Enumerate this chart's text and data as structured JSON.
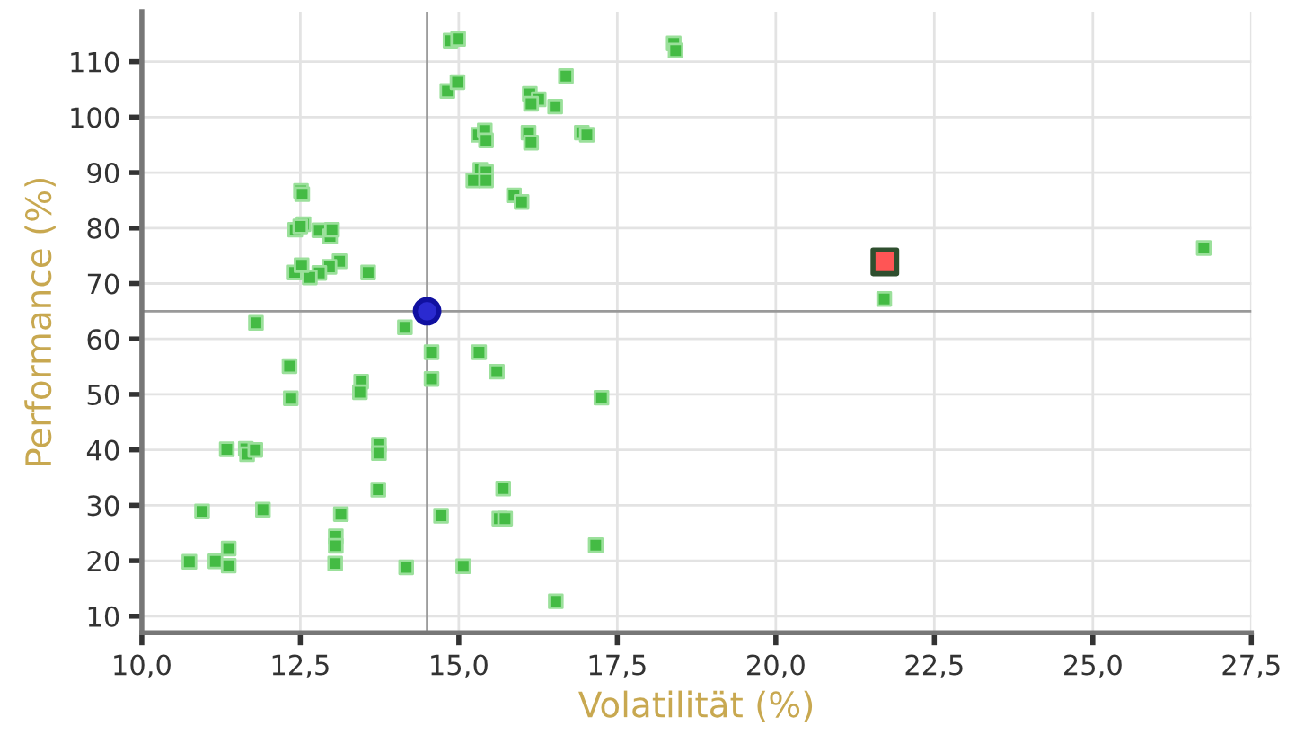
{
  "chart_data": {
    "type": "scatter",
    "xlabel": "Volatilität (%)",
    "ylabel": "Performance (%)",
    "xlim": [
      10,
      27.5
    ],
    "ylim": [
      7,
      119
    ],
    "xticks": [
      {
        "value": 10,
        "label": "10,0"
      },
      {
        "value": 12.5,
        "label": "12,5"
      },
      {
        "value": 15,
        "label": "15,0"
      },
      {
        "value": 17.5,
        "label": "17,5"
      },
      {
        "value": 20,
        "label": "20,0"
      },
      {
        "value": 22.5,
        "label": "22,5"
      },
      {
        "value": 25,
        "label": "25,0"
      },
      {
        "value": 27.5,
        "label": "27,5"
      }
    ],
    "yticks": [
      10,
      20,
      30,
      40,
      50,
      60,
      70,
      80,
      90,
      100,
      110
    ],
    "grid": true,
    "ref_lines": [
      {
        "axis": "x",
        "value": 14.5,
        "color": "#999999"
      },
      {
        "axis": "y",
        "value": 65,
        "color": "#999999"
      }
    ],
    "series": [
      {
        "color": "#44bb44",
        "marker": "square",
        "x": [
          14.87,
          14.99,
          14.82,
          14.98,
          12.51,
          12.53,
          12.42,
          12.55,
          12.5,
          12.8,
          12.97,
          13.0,
          13.12,
          12.96,
          12.8,
          12.65,
          12.41,
          12.52,
          13.57,
          11.8,
          14.15,
          18.39,
          18.42,
          16.69,
          16.12,
          16.26,
          16.14,
          16.52,
          15.31,
          15.41,
          15.43,
          16.1,
          16.14,
          16.94,
          17.02,
          15.34,
          15.43,
          15.23,
          15.43,
          15.87,
          15.99,
          14.57,
          15.32,
          14.57,
          12.33,
          12.35,
          13.46,
          13.44,
          11.34,
          11.64,
          11.66,
          11.79,
          13.74,
          13.74,
          13.73,
          10.95,
          11.91,
          13.14,
          14.72,
          13.06,
          13.06,
          13.05,
          11.37,
          10.75,
          11.16,
          11.37,
          14.17,
          15.07,
          15.6,
          17.25,
          15.7,
          15.64,
          15.73,
          17.16,
          16.53,
          21.71,
          26.75
        ],
        "values": [
          113.8,
          114.1,
          104.7,
          106.3,
          86.7,
          86.1,
          79.7,
          80.7,
          80.3,
          79.6,
          78.5,
          79.7,
          74.0,
          73.0,
          71.9,
          71.1,
          72.0,
          73.3,
          72.0,
          62.9,
          62.1,
          113.3,
          112.0,
          107.4,
          104.2,
          103.2,
          102.4,
          101.9,
          96.8,
          97.6,
          95.8,
          97.2,
          95.4,
          97.2,
          96.8,
          90.5,
          90.1,
          88.6,
          88.6,
          85.9,
          84.7,
          57.6,
          57.6,
          52.8,
          55.1,
          49.3,
          52.3,
          50.4,
          40.1,
          40.2,
          39.2,
          40.0,
          40.9,
          39.4,
          32.8,
          28.9,
          29.2,
          28.4,
          28.1,
          24.4,
          22.7,
          19.5,
          22.2,
          19.8,
          19.9,
          19.1,
          18.8,
          19.0,
          54.1,
          49.4,
          33.0,
          27.6,
          27.6,
          22.8,
          12.7,
          67.2,
          76.4
        ]
      },
      {
        "color": "#ff5555",
        "marker": "square",
        "x": [
          21.72
        ],
        "values": [
          73.9
        ]
      },
      {
        "color": "#2a2ad0",
        "marker": "circle",
        "x": [
          14.5
        ],
        "values": [
          65
        ]
      }
    ]
  }
}
